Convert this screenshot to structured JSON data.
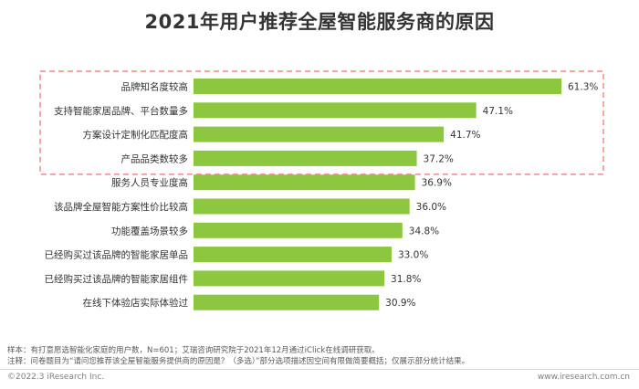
{
  "title": "2021年用户推荐全屋智能服务商的原因",
  "chart_data": {
    "type": "bar",
    "orientation": "horizontal",
    "categories": [
      "品牌知名度较高",
      "支持智能家居品牌、平台数量多",
      "方案设计定制化匹配度高",
      "产品品类数较多",
      "服务人员专业度高",
      "该品牌全屋智能方案性价比较高",
      "功能覆盖场景较多",
      "已经购买过该品牌的智能家居单品",
      "已经购买过该品牌的智能家居组件",
      "在线下体验店实际体验过"
    ],
    "values": [
      61.3,
      47.1,
      41.7,
      37.2,
      36.9,
      36.0,
      34.8,
      33.0,
      31.8,
      30.9
    ],
    "value_labels": [
      "61.3%",
      "47.1%",
      "41.7%",
      "37.2%",
      "36.9%",
      "36.0%",
      "34.8%",
      "33.0%",
      "31.8%",
      "30.9%"
    ],
    "xlim": [
      0,
      70
    ],
    "grid": false,
    "highlight": {
      "first_n": 4,
      "style": "dashed-box",
      "color": "#f08a8a"
    },
    "bar_color": "#8dc63f"
  },
  "notes": {
    "sample": "样本：有打意愿选智能化家庭的用户数，N=601；艾瑞咨询研究院于2021年12月通过iClick在线调研获取。",
    "note": "注释：问卷题目为“请问您推荐该全屋智能服务提供商的原因是？（多选）”部分选项描述因空间有限做简要概括；仅展示部分统计结果。"
  },
  "footer": {
    "copyright": "©2022.3 iResearch Inc.",
    "website": "www.iresearch.com.cn"
  }
}
